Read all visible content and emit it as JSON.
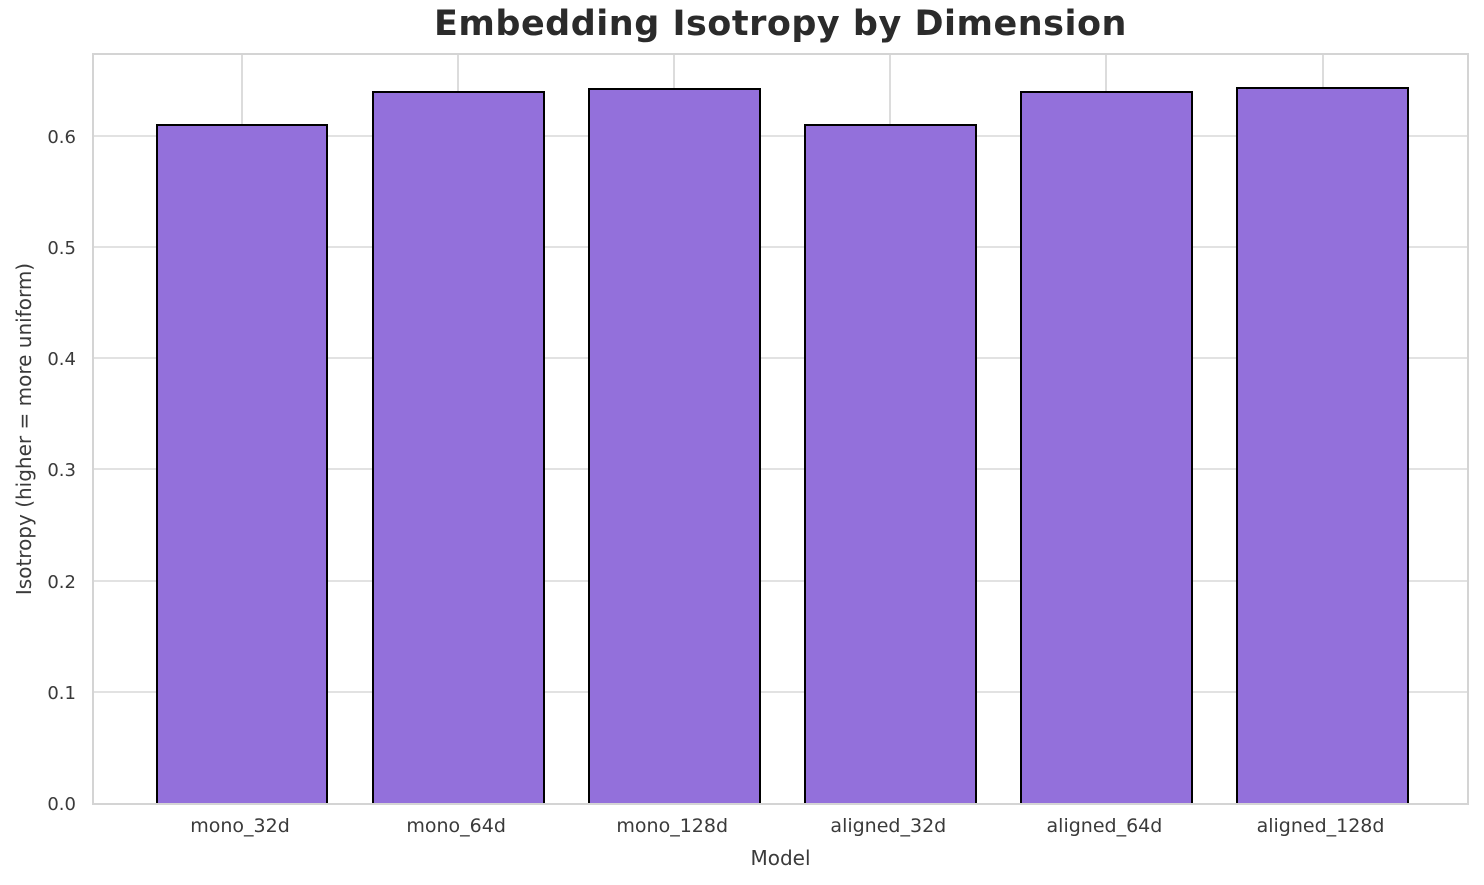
{
  "chart_data": {
    "type": "bar",
    "title": "Embedding Isotropy by Dimension",
    "xlabel": "Model",
    "ylabel": "Isotropy (higher = more uniform)",
    "categories": [
      "mono_32d",
      "mono_64d",
      "mono_128d",
      "aligned_32d",
      "aligned_64d",
      "aligned_128d"
    ],
    "values": [
      0.61,
      0.64,
      0.643,
      0.61,
      0.64,
      0.644
    ],
    "ytick_labels": [
      "0.0",
      "0.1",
      "0.2",
      "0.3",
      "0.4",
      "0.5",
      "0.6"
    ],
    "yticks": [
      0.0,
      0.1,
      0.2,
      0.3,
      0.4,
      0.5,
      0.6
    ],
    "ylim": [
      0,
      0.676
    ],
    "grid": true,
    "legend": "none",
    "bar_fill_color": "#9370DB",
    "bar_edge_color": "#000000",
    "grid_color": "#dcdcdc",
    "spine_color": "#d4d4d4",
    "title_color": "#2b2b2b",
    "tick_label_color": "#3a3a3a"
  }
}
